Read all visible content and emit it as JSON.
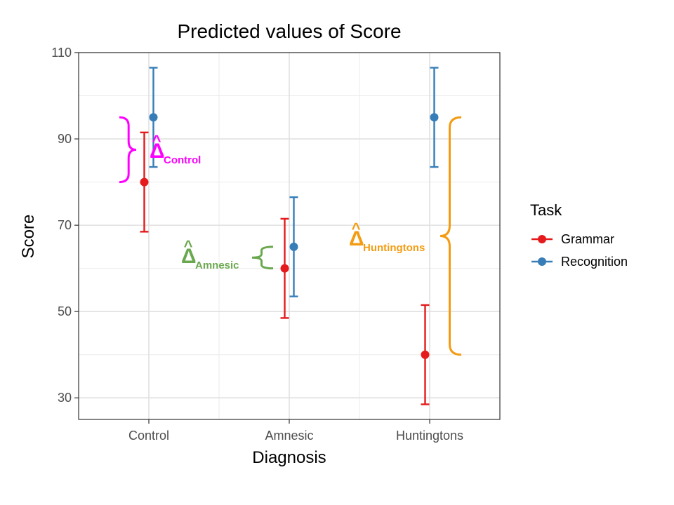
{
  "chart_data": {
    "type": "scatter",
    "title": "Predicted values of Score",
    "xlabel": "Diagnosis",
    "ylabel": "Score",
    "categories": [
      "Control",
      "Amnesic",
      "Huntingtons"
    ],
    "ylim": [
      25,
      110
    ],
    "yticks": [
      "30",
      "50",
      "70",
      "90",
      "110"
    ],
    "grid": true,
    "legend": {
      "title": "Task",
      "placement": "right"
    },
    "series": [
      {
        "name": "Grammar",
        "color": "#E41A1C",
        "values": [
          80,
          60,
          40
        ],
        "lower": [
          68.5,
          48.5,
          28.5
        ],
        "upper": [
          91.5,
          71.5,
          51.5
        ]
      },
      {
        "name": "Recognition",
        "color": "#377EB8",
        "values": [
          95,
          65,
          95
        ],
        "lower": [
          83.5,
          53.5,
          83.5
        ],
        "upper": [
          106.5,
          76.5,
          106.5
        ]
      }
    ],
    "annotations": [
      {
        "symbol": "Δ",
        "subscript": "Control",
        "color": "#FF00FF",
        "category": "Control",
        "from": 80,
        "to": 95
      },
      {
        "symbol": "Δ",
        "subscript": "Amnesic",
        "color": "#6AA84F",
        "category": "Amnesic",
        "from": 60,
        "to": 65
      },
      {
        "symbol": "Δ",
        "subscript": "Huntingtons",
        "color": "#F39C12",
        "category": "Huntingtons",
        "from": 40,
        "to": 95
      }
    ]
  }
}
